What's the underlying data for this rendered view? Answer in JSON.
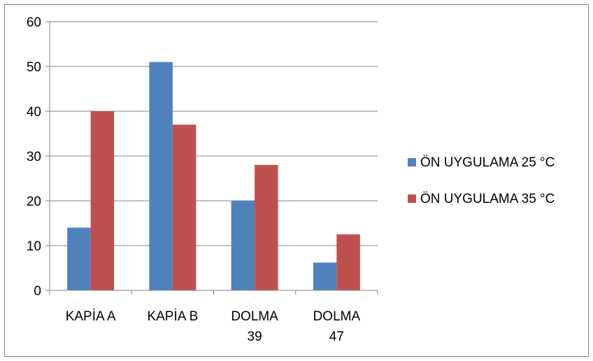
{
  "chart_data": {
    "type": "bar",
    "categories": [
      [
        "KAPİA A"
      ],
      [
        "KAPİA B"
      ],
      [
        "DOLMA",
        "39"
      ],
      [
        "DOLMA",
        "47"
      ]
    ],
    "series": [
      {
        "name": "ÖN UYGULAMA 25 °C",
        "color": "#4F81BD",
        "values": [
          14,
          51,
          20,
          6.2
        ]
      },
      {
        "name": "ÖN UYGULAMA 35 °C",
        "color": "#C0504D",
        "values": [
          40,
          37,
          28,
          12.5
        ]
      }
    ],
    "ylim": [
      0,
      60
    ],
    "yticks": [
      0,
      10,
      20,
      30,
      40,
      50,
      60
    ],
    "grid": true,
    "legend_position": "right",
    "title": "",
    "xlabel": "",
    "ylabel": ""
  }
}
